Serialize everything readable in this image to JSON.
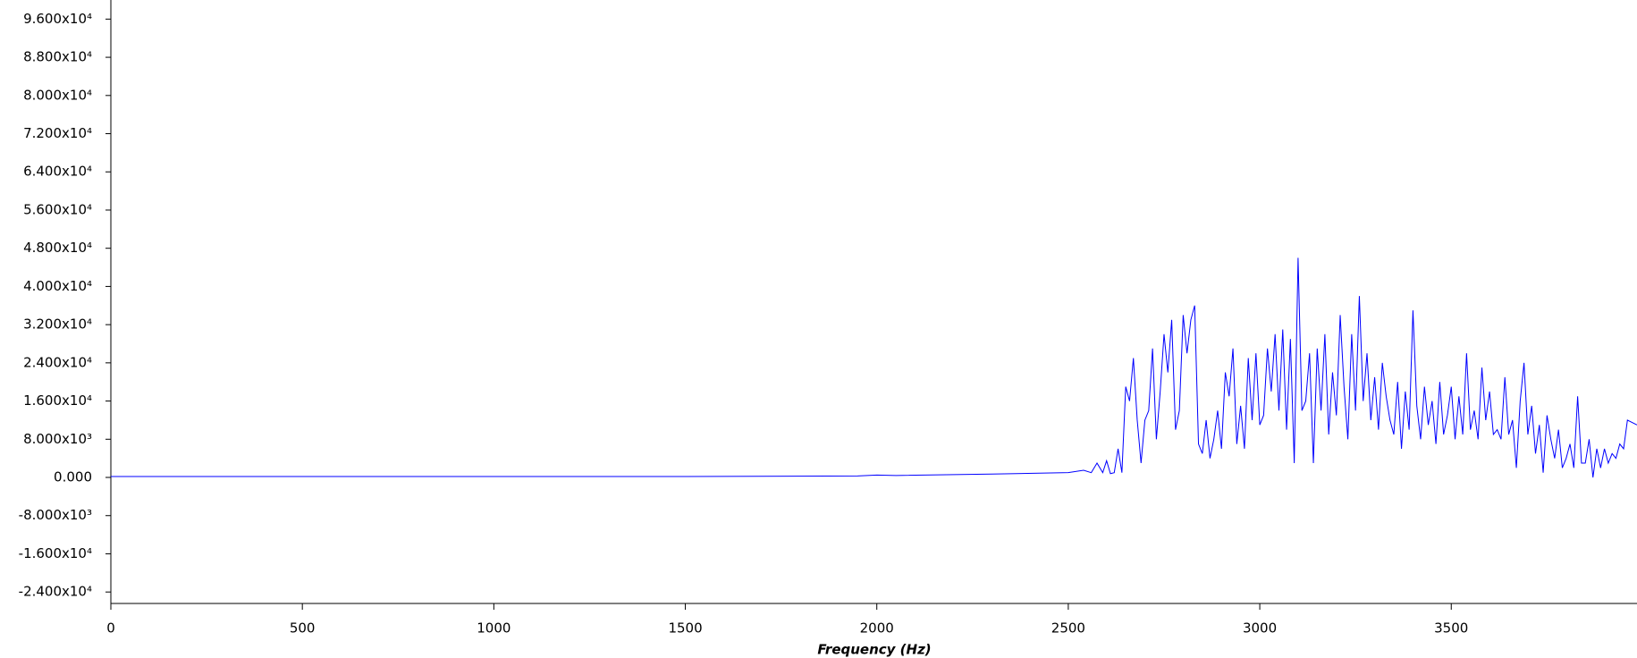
{
  "chart_data": {
    "type": "line",
    "x_label": "Frequency  (Hz)",
    "xlim": [
      0,
      3985
    ],
    "ylim": [
      -26400,
      100000
    ],
    "xticks": [
      0,
      500,
      1000,
      1500,
      2000,
      2500,
      3000,
      3500
    ],
    "yticks": [
      {
        "value": 96000,
        "label": "9.600x10⁴"
      },
      {
        "value": 88000,
        "label": "8.800x10⁴"
      },
      {
        "value": 80000,
        "label": "8.000x10⁴"
      },
      {
        "value": 72000,
        "label": "7.200x10⁴"
      },
      {
        "value": 64000,
        "label": "6.400x10⁴"
      },
      {
        "value": 56000,
        "label": "5.600x10⁴"
      },
      {
        "value": 48000,
        "label": "4.800x10⁴"
      },
      {
        "value": 40000,
        "label": "4.000x10⁴"
      },
      {
        "value": 32000,
        "label": "3.200x10⁴"
      },
      {
        "value": 24000,
        "label": "2.400x10⁴"
      },
      {
        "value": 16000,
        "label": "1.600x10⁴"
      },
      {
        "value": 8000,
        "label": "8.000x10³"
      },
      {
        "value": 0,
        "label": "0.000"
      },
      {
        "value": -8000,
        "label": "-8.000x10³"
      },
      {
        "value": -16000,
        "label": "-1.600x10⁴"
      },
      {
        "value": -24000,
        "label": "-2.400x10⁴"
      }
    ],
    "x": [
      0,
      500,
      1000,
      1500,
      1950,
      2000,
      2050,
      2300,
      2500,
      2540,
      2560,
      2575,
      2590,
      2600,
      2610,
      2620,
      2630,
      2640,
      2650,
      2660,
      2670,
      2680,
      2690,
      2700,
      2710,
      2720,
      2730,
      2740,
      2750,
      2760,
      2770,
      2780,
      2790,
      2800,
      2810,
      2820,
      2830,
      2840,
      2850,
      2860,
      2870,
      2880,
      2890,
      2900,
      2910,
      2920,
      2930,
      2940,
      2950,
      2960,
      2970,
      2980,
      2990,
      3000,
      3010,
      3020,
      3030,
      3040,
      3050,
      3060,
      3070,
      3080,
      3090,
      3100,
      3110,
      3120,
      3130,
      3140,
      3150,
      3160,
      3170,
      3180,
      3190,
      3200,
      3210,
      3220,
      3230,
      3240,
      3250,
      3260,
      3270,
      3280,
      3290,
      3300,
      3310,
      3320,
      3330,
      3340,
      3350,
      3360,
      3370,
      3380,
      3390,
      3400,
      3410,
      3420,
      3430,
      3440,
      3450,
      3460,
      3470,
      3480,
      3490,
      3500,
      3510,
      3520,
      3530,
      3540,
      3550,
      3560,
      3570,
      3580,
      3590,
      3600,
      3610,
      3620,
      3630,
      3640,
      3650,
      3660,
      3670,
      3680,
      3690,
      3700,
      3710,
      3720,
      3730,
      3740,
      3750,
      3760,
      3770,
      3780,
      3790,
      3800,
      3810,
      3820,
      3830,
      3840,
      3850,
      3860,
      3870,
      3880,
      3890,
      3900,
      3910,
      3920,
      3930,
      3940,
      3950,
      3960,
      3985
    ],
    "series": [
      {
        "color": "#0000ff",
        "values": [
          200,
          200,
          200,
          200,
          300,
          500,
          400,
          700,
          1000,
          1500,
          1000,
          3000,
          1000,
          3500,
          800,
          1000,
          6000,
          1000,
          19000,
          16000,
          25000,
          12000,
          3000,
          12000,
          14000,
          27000,
          8000,
          18000,
          30000,
          22000,
          33000,
          10000,
          14000,
          34000,
          26000,
          33000,
          36000,
          7000,
          5000,
          12000,
          4000,
          8000,
          14000,
          6000,
          22000,
          17000,
          27000,
          7000,
          15000,
          6000,
          25000,
          12000,
          26000,
          11000,
          13000,
          27000,
          18000,
          30000,
          14000,
          31000,
          10000,
          29000,
          3000,
          46000,
          14000,
          16000,
          26000,
          3000,
          27000,
          14000,
          30000,
          9000,
          22000,
          13000,
          34000,
          19000,
          8000,
          30000,
          14000,
          38000,
          16000,
          26000,
          12000,
          21000,
          10000,
          24000,
          17000,
          12000,
          9000,
          20000,
          6000,
          18000,
          10000,
          35000,
          15000,
          8000,
          19000,
          11000,
          16000,
          7000,
          20000,
          9000,
          13000,
          19000,
          8000,
          17000,
          9000,
          26000,
          10000,
          14000,
          8000,
          23000,
          12000,
          18000,
          9000,
          10000,
          8000,
          21000,
          9000,
          12000,
          2000,
          16000,
          24000,
          9000,
          15000,
          5000,
          11000,
          1000,
          13000,
          8000,
          4000,
          10000,
          2000,
          4000,
          7000,
          2000,
          17000,
          3000,
          3000,
          8000,
          0,
          6000,
          2000,
          6000,
          3000,
          5000,
          4000,
          7000,
          6000,
          12000,
          11000
        ]
      }
    ]
  }
}
